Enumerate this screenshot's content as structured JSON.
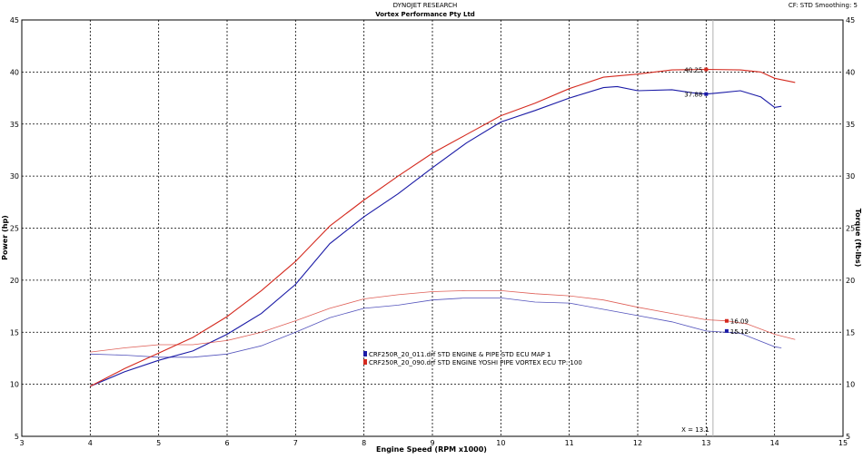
{
  "header": {
    "company": "DYNOJET RESEARCH",
    "customer": "Vortex Performance Pty Ltd",
    "settings": "CF: STD  Smoothing: 5"
  },
  "chart_data": {
    "type": "line",
    "xlabel": "Engine Speed (RPM x1000)",
    "ylabel_left": "Power (hp)",
    "ylabel_right": "Torque (ft-lbs)",
    "xlim": [
      3,
      15
    ],
    "ylim": [
      5,
      45
    ],
    "x_ticks": [
      "3",
      "4",
      "5",
      "6",
      "7",
      "8",
      "9",
      "10",
      "11",
      "12",
      "13",
      "14",
      "15"
    ],
    "y_ticks": [
      "5",
      "10",
      "15",
      "20",
      "25",
      "30",
      "35",
      "40",
      "45"
    ],
    "grid": true,
    "legend_position": "center",
    "series": [
      {
        "name": "CRF250R_20_011.drf STD ENGINE & PIPE STD  ECU MAP 1",
        "color": "#1a1aa6",
        "power": {
          "x": [
            4.0,
            4.5,
            5.0,
            5.5,
            6.0,
            6.5,
            7.0,
            7.5,
            8.0,
            8.5,
            9.0,
            9.5,
            10.0,
            10.5,
            11.0,
            11.5,
            11.7,
            12.0,
            12.5,
            12.8,
            13.0,
            13.2,
            13.5,
            13.8,
            14.0,
            14.1
          ],
          "y": [
            9.8,
            11.2,
            12.3,
            13.2,
            14.8,
            16.8,
            19.6,
            23.5,
            26.1,
            28.3,
            30.8,
            33.2,
            35.2,
            36.3,
            37.5,
            38.5,
            38.6,
            38.2,
            38.3,
            38.0,
            37.88,
            38.0,
            38.2,
            37.6,
            36.6,
            36.7
          ]
        },
        "torque": {
          "x": [
            4.0,
            4.5,
            5.0,
            5.5,
            6.0,
            6.5,
            7.0,
            7.5,
            8.0,
            8.5,
            9.0,
            9.5,
            10.0,
            10.5,
            11.0,
            11.5,
            12.0,
            12.5,
            13.0,
            13.5,
            14.0,
            14.1
          ],
          "y": [
            12.9,
            12.8,
            12.6,
            12.6,
            12.9,
            13.7,
            15.0,
            16.4,
            17.3,
            17.6,
            18.1,
            18.3,
            18.3,
            17.9,
            17.8,
            17.2,
            16.6,
            16.0,
            15.12,
            14.9,
            13.6,
            13.5
          ]
        }
      },
      {
        "name": "CRF250R_20_090.drf STD ENGINE YOSHI  PIPE VORTEX  ECU  TP: 100",
        "color": "#d42a1f",
        "power": {
          "x": [
            4.0,
            4.5,
            5.0,
            5.5,
            6.0,
            6.5,
            7.0,
            7.5,
            8.0,
            8.5,
            9.0,
            9.5,
            10.0,
            10.5,
            11.0,
            11.5,
            12.0,
            12.5,
            13.0,
            13.5,
            13.8,
            14.0,
            14.3
          ],
          "y": [
            9.8,
            11.5,
            13.0,
            14.5,
            16.5,
            19.0,
            21.8,
            25.2,
            27.7,
            30.0,
            32.2,
            34.0,
            35.8,
            37.0,
            38.4,
            39.5,
            39.8,
            40.2,
            40.25,
            40.2,
            40.0,
            39.4,
            39.0
          ]
        },
        "torque": {
          "x": [
            4.0,
            4.5,
            5.0,
            5.5,
            6.0,
            6.5,
            7.0,
            7.5,
            8.0,
            8.5,
            9.0,
            9.5,
            10.0,
            10.5,
            11.0,
            11.5,
            12.0,
            12.5,
            13.0,
            13.3,
            13.6,
            14.0,
            14.3
          ],
          "y": [
            13.1,
            13.5,
            13.8,
            13.8,
            14.2,
            15.0,
            16.1,
            17.3,
            18.2,
            18.6,
            18.9,
            19.0,
            19.0,
            18.7,
            18.5,
            18.1,
            17.4,
            16.8,
            16.2,
            16.09,
            15.8,
            14.8,
            14.3
          ]
        }
      }
    ],
    "annotations": [
      {
        "text": "40.25",
        "x": 13.0,
        "y": 40.25,
        "color": "#d42a1f"
      },
      {
        "text": "37.88",
        "x": 13.0,
        "y": 37.88,
        "color": "#1a1aa6"
      },
      {
        "text": "16.09",
        "x": 13.3,
        "y": 16.09,
        "color": "#d42a1f"
      },
      {
        "text": "15.12",
        "x": 13.3,
        "y": 15.12,
        "color": "#1a1aa6"
      }
    ],
    "cursor": {
      "x": 13.1,
      "label": "X = 13.1"
    }
  }
}
